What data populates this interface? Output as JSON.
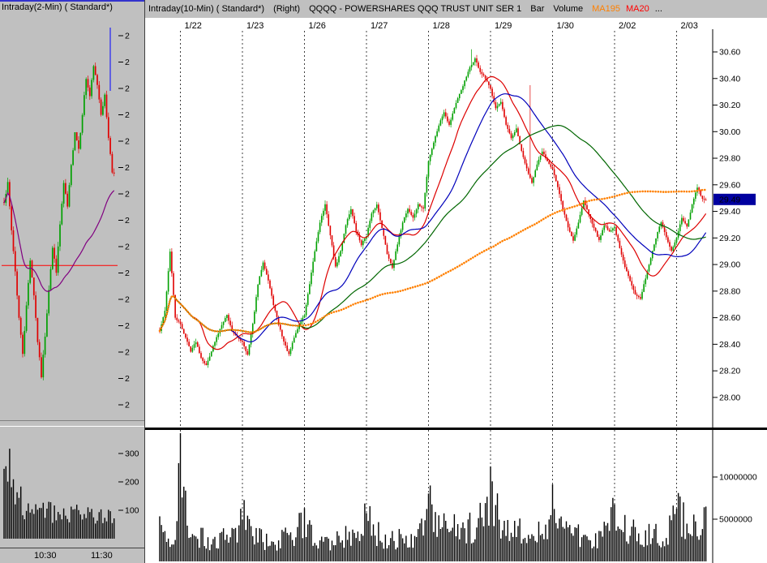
{
  "app": {
    "name": "stock-charting-workspace"
  },
  "colors": {
    "panel_bg": "#c0c0c0",
    "chart_bg": "#ffffff",
    "candle_up": "#00a000",
    "candle_down": "#e00000",
    "volume_bar": "#000000",
    "grid_line": "#404040",
    "prev_close_line": "#ff0000",
    "cursor_line": "#0000ff",
    "ma_purple": "#800080",
    "ma20_red": "#dd0000",
    "ma_blue": "#0000bb",
    "ma_green": "#006600",
    "ma195_orange": "#ff8000",
    "last_price_badge_bg": "#0000a0",
    "last_price_badge_text": "#ffffff",
    "selected_border": "#3333cc"
  },
  "left_panel": {
    "title": "Intraday(2-Min) ( Standard*)",
    "price_axis_truncated_label": "2",
    "volume_axis_labels": [
      "300",
      "200",
      "100"
    ],
    "time_labels": [
      "10:30",
      "11:30"
    ]
  },
  "right_panel": {
    "header": {
      "title": "Intraday(10-Min) ( Standard*)",
      "right_label": "(Right)",
      "symbol": "QQQQ - POWERSHARES QQQ TRUST UNIT SER 1",
      "series_type": "Bar",
      "volume_label": "Volume",
      "ma195_label": "MA195",
      "ma20_label": "MA20",
      "more_label": "..."
    }
  },
  "chart_data": [
    {
      "id": "intraday-2min-qqqq",
      "type": "candlestick",
      "title": "Intraday(2-Min) ( Standard*)",
      "price_range": [
        29.05,
        29.7
      ],
      "prev_close": 29.29,
      "expand_factor": 2,
      "close_anchors": [
        29.4,
        29.43,
        29.35,
        29.28,
        29.2,
        29.14,
        29.22,
        29.3,
        29.24,
        29.16,
        29.1,
        29.17,
        29.25,
        29.32,
        29.28,
        29.36,
        29.43,
        29.39,
        29.46,
        29.52,
        29.49,
        29.55,
        29.61,
        29.58,
        29.63,
        29.6,
        29.55,
        29.58,
        29.51,
        29.45
      ],
      "volume_anchors": [
        260,
        340,
        200,
        150,
        170,
        120,
        90,
        140,
        100,
        80,
        120,
        70,
        160,
        100,
        80,
        130,
        90,
        70,
        110,
        80,
        95,
        65,
        115,
        85,
        65,
        95,
        75,
        55,
        85,
        90
      ],
      "volume_axis": {
        "labels": [
          "300",
          "200",
          "100"
        ],
        "values": [
          300,
          200,
          100
        ]
      },
      "time_ticks": [
        "10:30",
        "11:30"
      ],
      "moving_average": {
        "name": "",
        "window": 45,
        "color": "#800080"
      }
    },
    {
      "id": "intraday-10min-qqqq",
      "type": "candlestick",
      "symbol": "QQQQ - POWERSHARES QQQ TRUST UNIT SER 1",
      "interval": "10-Min",
      "expand_factor": 3,
      "price_axis": {
        "labels": [
          "30.60",
          "30.40",
          "30.20",
          "30.00",
          "29.80",
          "29.60",
          "29.40",
          "29.20",
          "29.00",
          "28.80",
          "28.60",
          "28.40",
          "28.20",
          "28.00"
        ],
        "values": [
          30.6,
          30.4,
          30.2,
          30.0,
          29.8,
          29.6,
          29.4,
          29.2,
          29.0,
          28.8,
          28.6,
          28.4,
          28.2,
          28.0
        ]
      },
      "last_price_label": "29.49",
      "last_price_value": 29.49,
      "volume_axis": {
        "labels": [
          "10000000",
          "5000000"
        ],
        "values_millions": [
          10,
          5
        ]
      },
      "spikes": [
        {
          "bar": 181,
          "high": 30.62
        },
        {
          "bar": 215,
          "high": 30.35
        }
      ],
      "moving_averages": [
        {
          "name": "MA20",
          "window": 20,
          "color": "#dd0000",
          "style": "solid"
        },
        {
          "name": "",
          "window": 39,
          "color": "#0000bb",
          "style": "solid"
        },
        {
          "name": "",
          "window": 78,
          "color": "#006600",
          "style": "solid"
        },
        {
          "name": "MA195",
          "window": 195,
          "color": "#ff8000",
          "style": "dotted-thick"
        }
      ],
      "days": [
        {
          "label": "",
          "closes": [
            28.5,
            28.65,
            29.1,
            28.6
          ],
          "volumes_millions": [
            4,
            2.5,
            2,
            2
          ]
        },
        {
          "label": "1/22",
          "closes": [
            28.55,
            28.45,
            28.35,
            28.42,
            28.3,
            28.24,
            28.35,
            28.45,
            28.55,
            28.62,
            28.5,
            28.45
          ],
          "volumes_millions": [
            12,
            7,
            4,
            3,
            3,
            2.5,
            2,
            2.5,
            3,
            2.5,
            3,
            4
          ]
        },
        {
          "label": "1/23",
          "closes": [
            28.42,
            28.32,
            28.55,
            28.85,
            29.02,
            28.88,
            28.7,
            28.55,
            28.42,
            28.32,
            28.45,
            28.55
          ],
          "volumes_millions": [
            6,
            4,
            3,
            3,
            2.5,
            3,
            2.5,
            2,
            3,
            2.5,
            3,
            4
          ]
        },
        {
          "label": "1/26",
          "closes": [
            28.62,
            28.85,
            29.1,
            29.32,
            29.45,
            29.22,
            28.98,
            29.1,
            29.3,
            29.42,
            29.25,
            29.15
          ],
          "volumes_millions": [
            5,
            4,
            3,
            3,
            3.5,
            2.5,
            3,
            2.5,
            3,
            3,
            3.5,
            4
          ]
        },
        {
          "label": "1/27",
          "closes": [
            29.22,
            29.38,
            29.45,
            29.28,
            29.08,
            28.98,
            29.15,
            29.32,
            29.42,
            29.35,
            29.45,
            29.42
          ],
          "volumes_millions": [
            6,
            4,
            3.5,
            3,
            2.5,
            3,
            2.5,
            3,
            2.5,
            3,
            3.5,
            4
          ]
        },
        {
          "label": "1/28",
          "closes": [
            29.78,
            29.92,
            30.05,
            30.15,
            30.05,
            30.18,
            30.28,
            30.38,
            30.48,
            30.55,
            30.45,
            30.4
          ],
          "volumes_millions": [
            7,
            5,
            4,
            4,
            3.5,
            4,
            3,
            3.5,
            4,
            4.5,
            5,
            6
          ]
        },
        {
          "label": "1/29",
          "closes": [
            30.32,
            30.18,
            30.22,
            30.05,
            29.95,
            30.02,
            29.85,
            29.72,
            29.62,
            29.75,
            29.85,
            29.78
          ],
          "volumes_millions": [
            8,
            6,
            5,
            4,
            4,
            3.5,
            4,
            3.5,
            3,
            3.5,
            4,
            5
          ]
        },
        {
          "label": "1/30",
          "closes": [
            29.72,
            29.58,
            29.42,
            29.28,
            29.18,
            29.32,
            29.48,
            29.38,
            29.28,
            29.18,
            29.3,
            29.25
          ],
          "volumes_millions": [
            7,
            5,
            4,
            3.5,
            3,
            3.5,
            3,
            2.5,
            3,
            3,
            3.5,
            4
          ]
        },
        {
          "label": "2/02",
          "closes": [
            29.28,
            29.12,
            28.98,
            28.88,
            28.78,
            28.74,
            28.9,
            29.05,
            29.2,
            29.32,
            29.2,
            29.1
          ],
          "volumes_millions": [
            6,
            5,
            4,
            4,
            3.5,
            3,
            3.5,
            4,
            3.5,
            3,
            3.5,
            4.5
          ]
        },
        {
          "label": "2/03",
          "closes": [
            29.2,
            29.35,
            29.28,
            29.45,
            29.58,
            29.49
          ],
          "volumes_millions": [
            7,
            5,
            4.5,
            5,
            4,
            4.5
          ]
        }
      ]
    }
  ]
}
